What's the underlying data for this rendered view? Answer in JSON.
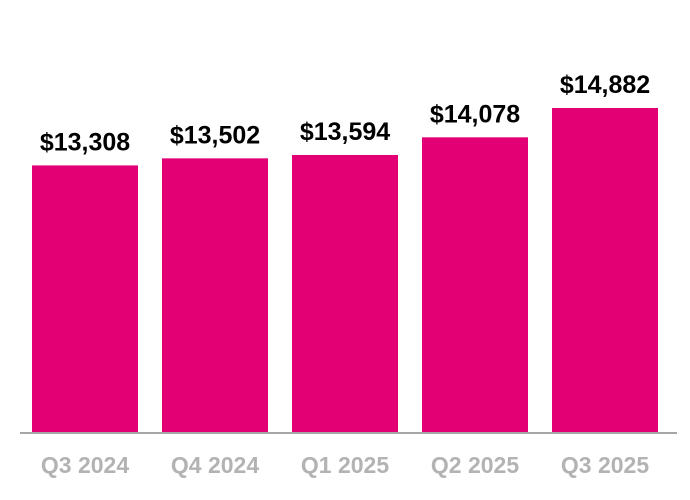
{
  "chart_data": {
    "type": "bar",
    "categories": [
      "Q3 2024",
      "Q4 2024",
      "Q1 2025",
      "Q2 2025",
      "Q3 2025"
    ],
    "values": [
      13308,
      13502,
      13594,
      14078,
      14882
    ],
    "data_labels": [
      "$13,308",
      "$13,502",
      "$13,594",
      "$14,078",
      "$14,882"
    ],
    "title": "",
    "xlabel": "",
    "ylabel": "",
    "grid": false,
    "legend": "none",
    "colors": {
      "bar": "#E20074",
      "axis": "#a6a6a6",
      "category_label": "#b3b3b3",
      "value_label": "#000000"
    }
  }
}
